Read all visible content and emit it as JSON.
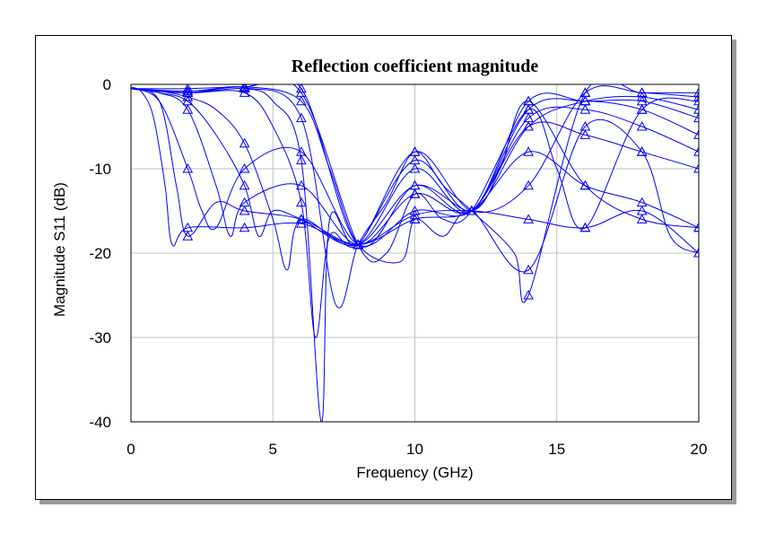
{
  "colors": {
    "series": "#0000ff",
    "grid": "#c0c0c0",
    "axis": "#000000"
  },
  "chart_data": {
    "type": "line",
    "title": "Reflection coefficient magnitude",
    "xlabel": "Frequency (GHz)",
    "ylabel": "Magnitude S11 (dB)",
    "xlim": [
      0,
      20
    ],
    "ylim": [
      -40,
      0
    ],
    "xticks": [
      0,
      5,
      10,
      15,
      20
    ],
    "yticks": [
      0,
      -10,
      -20,
      -30,
      -40
    ],
    "grid": true,
    "legend": "none",
    "marker": "triangle",
    "marker_x": [
      2,
      4,
      6,
      8,
      10,
      12,
      14,
      16,
      18,
      20
    ],
    "series": [
      {
        "x": [
          0,
          0.4,
          0.8,
          1.2,
          1.45,
          2,
          4,
          6,
          8,
          10,
          12,
          14,
          16,
          18,
          20
        ],
        "y": [
          -0.3,
          -1,
          -4,
          -12,
          -19,
          -17,
          -17,
          -16.5,
          -19,
          -15.5,
          -15,
          -16,
          -17,
          -15,
          -20
        ]
      },
      {
        "x": [
          0,
          1,
          1.6,
          2,
          3,
          4,
          6,
          8,
          10,
          12,
          14,
          16,
          18,
          20
        ],
        "y": [
          -0.5,
          -2,
          -12,
          -18,
          -14,
          -15,
          -16,
          -19,
          -16,
          -15,
          -8,
          -12,
          -14,
          -17
        ]
      },
      {
        "x": [
          0,
          1,
          2,
          2.5,
          3,
          4,
          6,
          8,
          10,
          12,
          14,
          16,
          18,
          20
        ],
        "y": [
          -0.5,
          -2,
          -10,
          -15,
          -17,
          -10,
          -8,
          -19,
          -15,
          -15,
          -5,
          -6,
          -8,
          -10
        ]
      },
      {
        "x": [
          0,
          1,
          2,
          3,
          3.5,
          4,
          6,
          8,
          10,
          12,
          14,
          16,
          18,
          20
        ],
        "y": [
          -0.5,
          -1,
          -3,
          -12,
          -18,
          -14,
          -12,
          -19,
          -13,
          -15,
          -4,
          -3,
          -5,
          -8
        ]
      },
      {
        "x": [
          0,
          1,
          2,
          3,
          4,
          4.5,
          5,
          6,
          8,
          10,
          12,
          14,
          16,
          18,
          20
        ],
        "y": [
          -0.5,
          -1,
          -2,
          -6,
          -12,
          -18,
          -15,
          -16,
          -19,
          -12,
          -15,
          -3,
          -2,
          -3,
          -6
        ]
      },
      {
        "x": [
          0,
          1,
          2,
          3,
          4,
          5,
          5.5,
          6,
          8,
          10,
          12,
          14,
          16,
          18,
          20
        ],
        "y": [
          -0.5,
          -0.8,
          -1.5,
          -3,
          -7,
          -16,
          -22,
          -16,
          -19,
          -10,
          -15,
          -2,
          -2,
          -2,
          -4
        ]
      },
      {
        "x": [
          0,
          2,
          4,
          5,
          6,
          6.5,
          7,
          8,
          10,
          12,
          14,
          16,
          18,
          20
        ],
        "y": [
          -0.5,
          -1,
          -1,
          -5,
          -14,
          -30,
          -18,
          -19,
          -9,
          -15,
          -5,
          -2,
          -1.5,
          -3
        ]
      },
      {
        "x": [
          0,
          2,
          4,
          5,
          6,
          6.7,
          7,
          8,
          10,
          12,
          14,
          16,
          18,
          20
        ],
        "y": [
          -0.5,
          -1,
          -0.5,
          -2,
          -9,
          -40,
          -16,
          -19,
          -8,
          -15,
          -12,
          -1,
          -1,
          -1.5
        ]
      },
      {
        "x": [
          0,
          2,
          4,
          6,
          7.2,
          8,
          9,
          10,
          11,
          12,
          13.5,
          14,
          16,
          18,
          20
        ],
        "y": [
          -0.5,
          -1,
          -0.4,
          -4,
          -26,
          -19,
          -14,
          -8,
          -12,
          -15,
          -20,
          -25,
          -1,
          -1,
          -1
        ]
      },
      {
        "x": [
          0,
          2,
          4,
          6,
          7,
          8,
          9.5,
          10,
          11,
          12,
          14,
          16,
          18,
          19,
          20
        ],
        "y": [
          -0.5,
          -1,
          -0.3,
          -2,
          -10,
          -19,
          -21,
          -16,
          -18,
          -15,
          -22,
          -5,
          -8,
          -18,
          -20
        ]
      },
      {
        "x": [
          0,
          2,
          4,
          6,
          8,
          9,
          10,
          11,
          12,
          14,
          15,
          16,
          18,
          20
        ],
        "y": [
          -0.5,
          -0.8,
          -0.3,
          -1,
          -19,
          -20,
          -13,
          -16,
          -15,
          -3,
          -10,
          -17,
          -3,
          -2
        ]
      },
      {
        "x": [
          0,
          2,
          4,
          6,
          8,
          10,
          12,
          13,
          14,
          16,
          18,
          20
        ],
        "y": [
          -0.5,
          -0.5,
          -0.3,
          -0.5,
          -19,
          -12,
          -15,
          -10,
          -2,
          -12,
          -16,
          -17
        ]
      }
    ]
  }
}
